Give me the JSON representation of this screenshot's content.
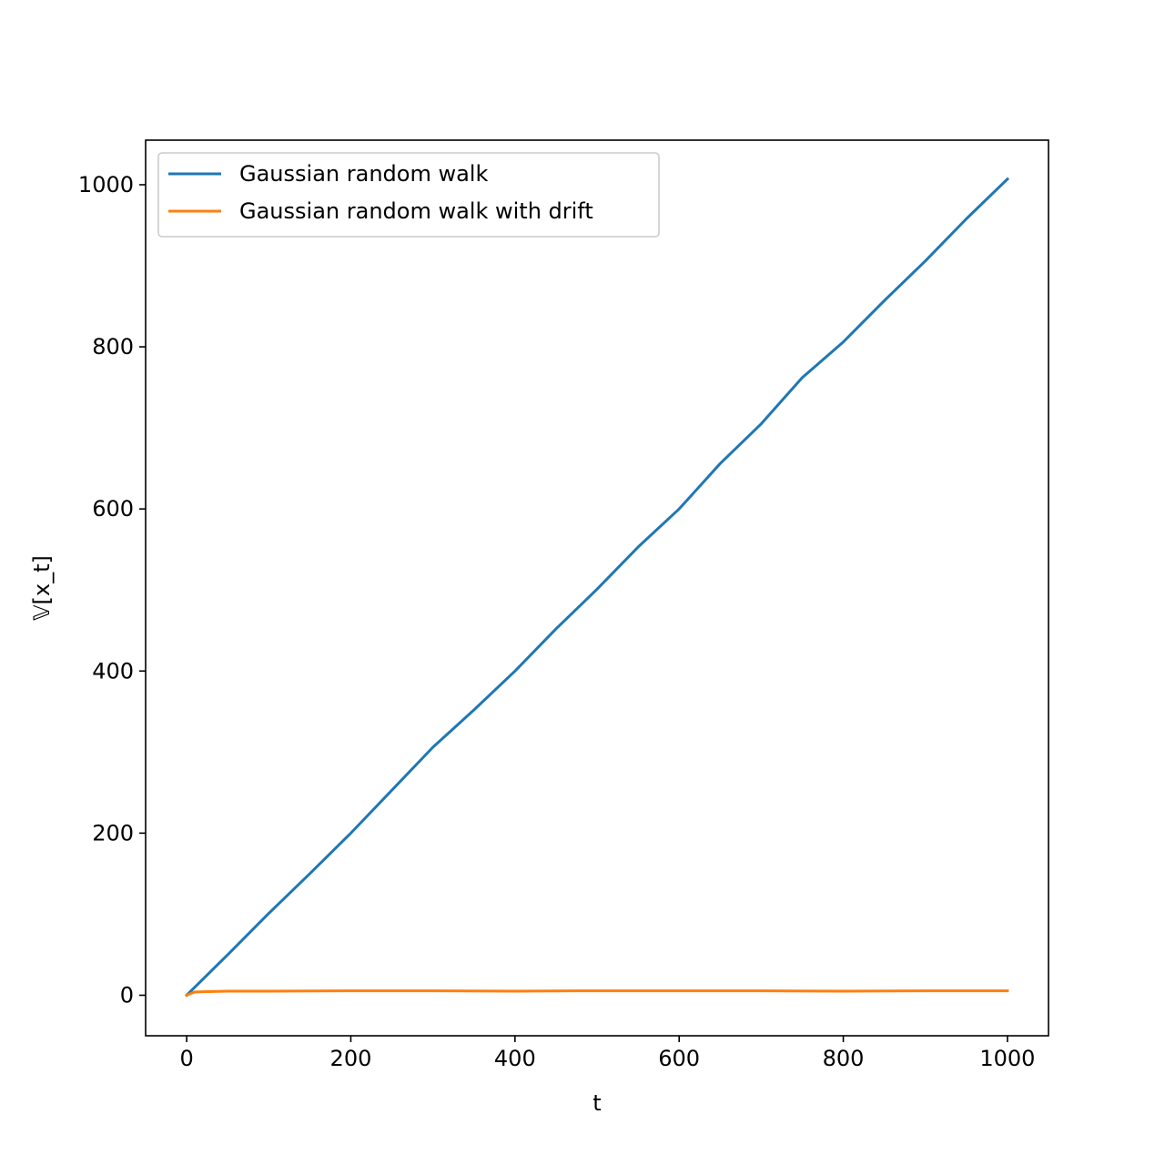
{
  "chart_data": {
    "type": "line",
    "title": "",
    "xlabel": "t",
    "ylabel": "𝕍[x_t]",
    "xlim": [
      -50,
      1050
    ],
    "ylim": [
      -50,
      1055
    ],
    "xticks": [
      0,
      200,
      400,
      600,
      800,
      1000
    ],
    "yticks": [
      0,
      200,
      400,
      600,
      800,
      1000
    ],
    "grid": false,
    "legend_position": "upper left",
    "series": [
      {
        "name": "Gaussian random walk",
        "color": "#1f77b4",
        "x": [
          0,
          50,
          100,
          150,
          200,
          250,
          300,
          350,
          400,
          450,
          500,
          550,
          600,
          650,
          700,
          750,
          800,
          850,
          900,
          950,
          1000
        ],
        "y": [
          0,
          50,
          101,
          150,
          200,
          253,
          306,
          352,
          400,
          452,
          501,
          553,
          600,
          656,
          705,
          762,
          806,
          857,
          906,
          958,
          1007
        ]
      },
      {
        "name": "Gaussian random walk with drift",
        "color": "#ff7f0e",
        "x": [
          0,
          10,
          50,
          100,
          200,
          300,
          400,
          500,
          600,
          700,
          800,
          900,
          1000
        ],
        "y": [
          0,
          4,
          5,
          5,
          5.5,
          5.5,
          5,
          5.5,
          5.5,
          5.5,
          5,
          5.5,
          5.5
        ]
      }
    ]
  }
}
